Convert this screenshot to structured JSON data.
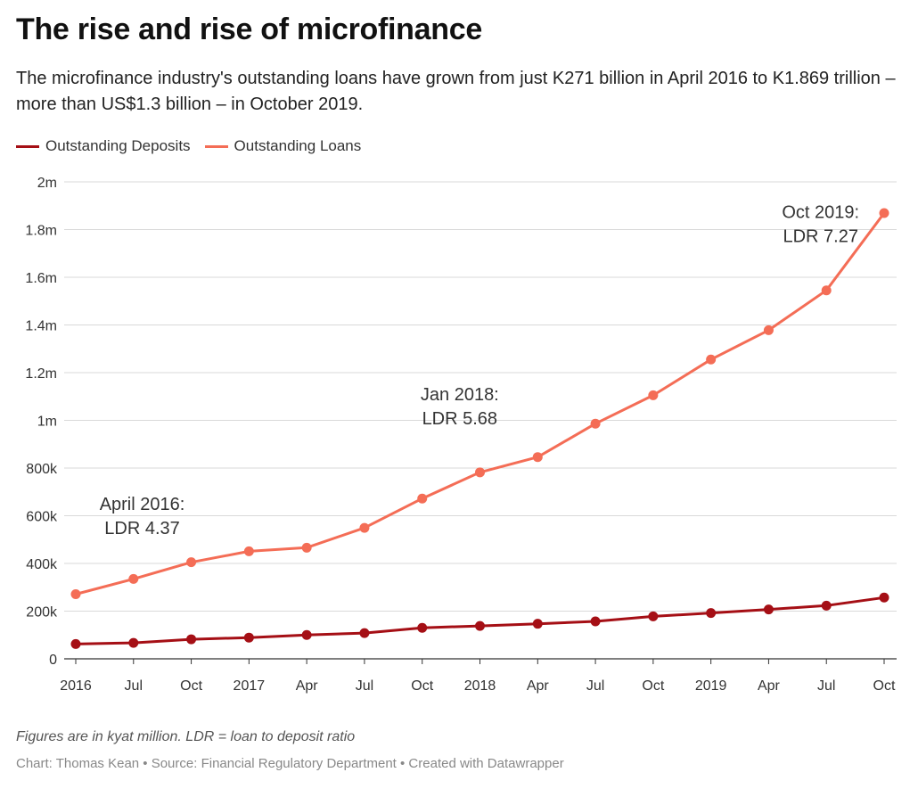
{
  "header": {
    "title": "The rise and rise of microfinance",
    "subtitle": "The microfinance industry's outstanding loans have grown from just K271 billion in April 2016 to K1.869 trillion – more than US$1.3 billion – in October 2019."
  },
  "notes": "Figures are in kyat million. LDR = loan to deposit ratio",
  "footer": "Chart: Thomas Kean • Source: Financial Regulatory Department • Created with Datawrapper",
  "chart_data": {
    "type": "line",
    "categories": [
      "2016",
      "Jul",
      "Oct",
      "2017",
      "Apr",
      "Jul",
      "Oct",
      "2018",
      "Apr",
      "Jul",
      "Oct",
      "2019",
      "Apr",
      "Jul",
      "Oct"
    ],
    "y_ticks": [
      {
        "value": 0,
        "label": "0"
      },
      {
        "value": 200000,
        "label": "200k"
      },
      {
        "value": 400000,
        "label": "400k"
      },
      {
        "value": 600000,
        "label": "600k"
      },
      {
        "value": 800000,
        "label": "800k"
      },
      {
        "value": 1000000,
        "label": "1m"
      },
      {
        "value": 1200000,
        "label": "1.2m"
      },
      {
        "value": 1400000,
        "label": "1.4m"
      },
      {
        "value": 1600000,
        "label": "1.6m"
      },
      {
        "value": 1800000,
        "label": "1.8m"
      },
      {
        "value": 2000000,
        "label": "2m"
      }
    ],
    "ylim": [
      0,
      2000000
    ],
    "grid": true,
    "legend_position": "top-left",
    "series": [
      {
        "name": "Outstanding Deposits",
        "color": "#a50f15",
        "values": [
          62000,
          67000,
          82000,
          89000,
          100000,
          108000,
          130000,
          138000,
          147000,
          157000,
          178000,
          192000,
          207000,
          223000,
          257000
        ]
      },
      {
        "name": "Outstanding Loans",
        "color": "#f46d56",
        "values": [
          271000,
          335000,
          405000,
          451000,
          466000,
          549000,
          672000,
          782000,
          846000,
          986000,
          1105000,
          1255000,
          1378000,
          1545000,
          1869000
        ]
      }
    ],
    "annotations": [
      {
        "lines": [
          "April 2016:",
          "LDR 4.37"
        ],
        "x_index": 1.15,
        "y": 625000
      },
      {
        "lines": [
          "Jan 2018:",
          "LDR 5.68"
        ],
        "x_index": 6.65,
        "y": 1085000
      },
      {
        "lines": [
          "Oct 2019:",
          "LDR 7.27"
        ],
        "x_index": 12.9,
        "y": 1848000
      }
    ]
  }
}
